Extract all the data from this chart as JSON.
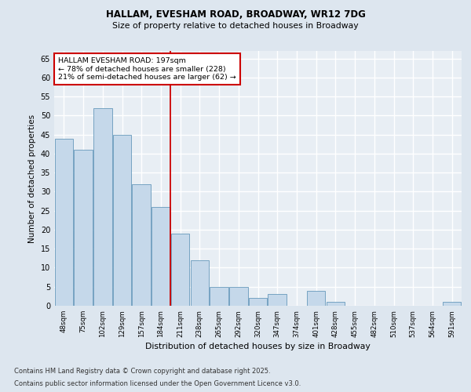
{
  "title1": "HALLAM, EVESHAM ROAD, BROADWAY, WR12 7DG",
  "title2": "Size of property relative to detached houses in Broadway",
  "xlabel": "Distribution of detached houses by size in Broadway",
  "ylabel": "Number of detached properties",
  "categories": [
    "48sqm",
    "75sqm",
    "102sqm",
    "129sqm",
    "157sqm",
    "184sqm",
    "211sqm",
    "238sqm",
    "265sqm",
    "292sqm",
    "320sqm",
    "347sqm",
    "374sqm",
    "401sqm",
    "428sqm",
    "455sqm",
    "482sqm",
    "510sqm",
    "537sqm",
    "564sqm",
    "591sqm"
  ],
  "values": [
    44,
    41,
    52,
    45,
    32,
    26,
    19,
    12,
    5,
    5,
    2,
    3,
    0,
    4,
    1,
    0,
    0,
    0,
    0,
    0,
    1
  ],
  "bar_color": "#c5d8ea",
  "bar_edge_color": "#6699bb",
  "property_label": "HALLAM EVESHAM ROAD: 197sqm",
  "annotation_line1": "← 78% of detached houses are smaller (228)",
  "annotation_line2": "21% of semi-detached houses are larger (62) →",
  "vline_color": "#cc0000",
  "vline_x_index": 6,
  "annotation_box_color": "#cc0000",
  "ylim": [
    0,
    67
  ],
  "yticks": [
    0,
    5,
    10,
    15,
    20,
    25,
    30,
    35,
    40,
    45,
    50,
    55,
    60,
    65
  ],
  "bg_color": "#dde6ef",
  "plot_bg_color": "#e8eef4",
  "grid_color": "#ffffff",
  "footer1": "Contains HM Land Registry data © Crown copyright and database right 2025.",
  "footer2": "Contains public sector information licensed under the Open Government Licence v3.0."
}
